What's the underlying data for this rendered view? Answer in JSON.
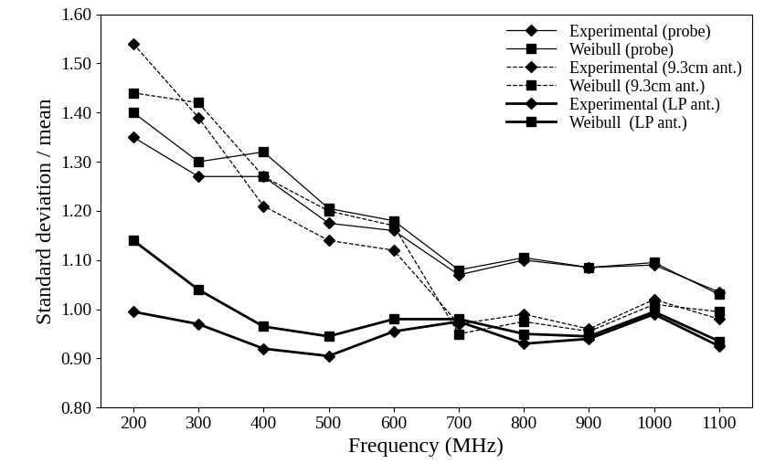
{
  "chart_data": {
    "type": "line",
    "x_label": "Frequency (MHz)",
    "y_label": "Standard deviation / mean",
    "categories": [
      "200",
      "300",
      "400",
      "500",
      "600",
      "700",
      "800",
      "900",
      "1000",
      "1100"
    ],
    "ylim": [
      0.8,
      1.6
    ],
    "yticks": [
      {
        "value": 0.8,
        "label": "0.80"
      },
      {
        "value": 0.9,
        "label": "0.90"
      },
      {
        "value": 1.0,
        "label": "1.00"
      },
      {
        "value": 1.1,
        "label": "1.10"
      },
      {
        "value": 1.2,
        "label": "1.20"
      },
      {
        "value": 1.3,
        "label": "1.30"
      },
      {
        "value": 1.4,
        "label": "1.40"
      },
      {
        "value": 1.5,
        "label": "1.50"
      },
      {
        "value": 1.6,
        "label": "1.60"
      }
    ],
    "grid": false,
    "legend": "upper right",
    "series": [
      {
        "name": "Experimental (probe)",
        "color": "#000000",
        "marker": "diamond",
        "line_style": "thin",
        "values": [
          1.35,
          1.27,
          1.27,
          1.175,
          1.16,
          1.07,
          1.1,
          1.085,
          1.09,
          1.035
        ]
      },
      {
        "name": "Weibull (probe)",
        "color": "#000000",
        "marker": "square",
        "line_style": "thin",
        "values": [
          1.4,
          1.3,
          1.32,
          1.205,
          1.18,
          1.08,
          1.105,
          1.085,
          1.095,
          1.03
        ]
      },
      {
        "name": "Experimental (9.3cm ant.)",
        "color": "#000000",
        "marker": "diamond",
        "line_style": "dashed",
        "values": [
          1.54,
          1.39,
          1.21,
          1.14,
          1.12,
          0.97,
          0.99,
          0.96,
          1.02,
          0.98
        ]
      },
      {
        "name": "Weibull (9.3cm ant.)",
        "color": "#000000",
        "marker": "square",
        "line_style": "dashed",
        "values": [
          1.44,
          1.42,
          1.27,
          1.2,
          1.17,
          0.95,
          0.975,
          0.955,
          1.01,
          0.995
        ]
      },
      {
        "name": "Experimental (LP ant.)",
        "color": "#000000",
        "marker": "diamond",
        "line_style": "thick",
        "values": [
          0.995,
          0.97,
          0.92,
          0.905,
          0.955,
          0.975,
          0.93,
          0.94,
          0.99,
          0.925
        ]
      },
      {
        "name": "Weibull  (LP ant.)",
        "color": "#000000",
        "marker": "square",
        "line_style": "thick",
        "values": [
          1.14,
          1.04,
          0.965,
          0.945,
          0.98,
          0.98,
          0.95,
          0.945,
          0.995,
          0.935
        ]
      }
    ]
  }
}
